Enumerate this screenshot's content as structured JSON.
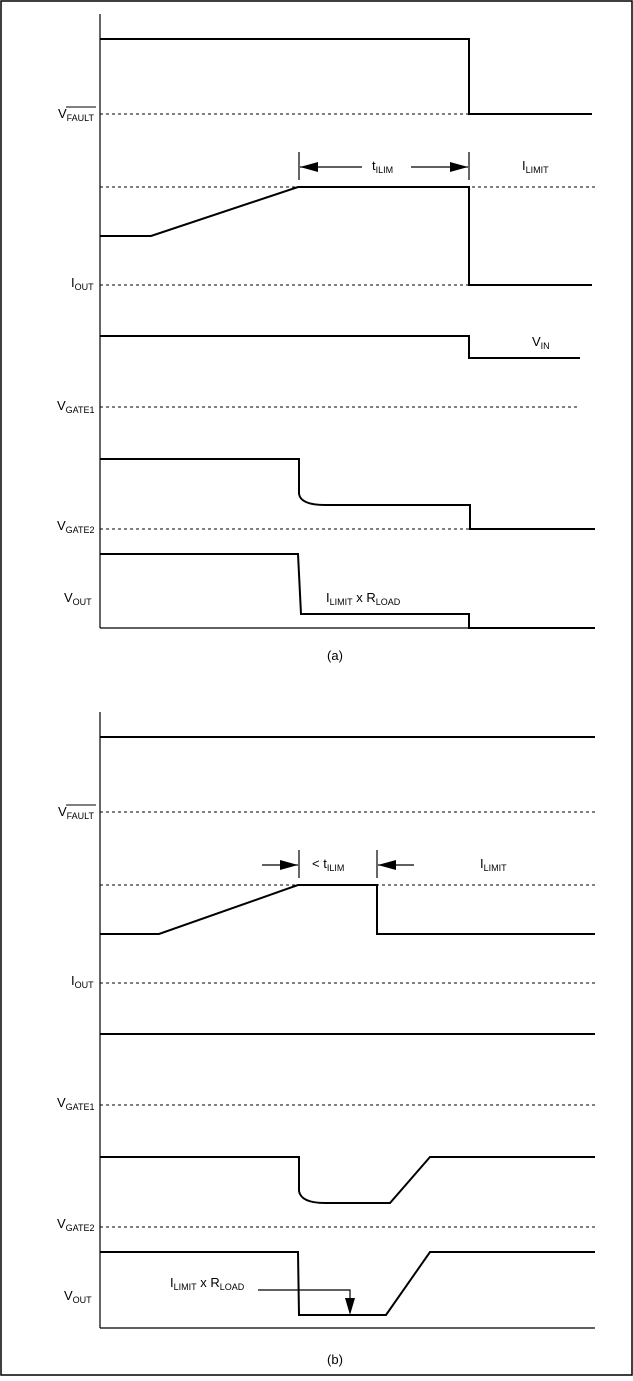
{
  "panel_a": {
    "caption": "(a)",
    "labels": {
      "vfault": "V",
      "vfault_sub": "FAULT",
      "iout": "I",
      "iout_sub": "OUT",
      "vgate1": "V",
      "vgate1_sub": "GATE1",
      "vgate2": "V",
      "vgate2_sub": "GATE2",
      "vout": "V",
      "vout_sub": "OUT"
    },
    "annotations": {
      "t_ilim": "t",
      "t_ilim_sub": "ILIM",
      "ilimit": "I",
      "ilimit_sub": "LIMIT",
      "vin": "V",
      "vin_sub": "IN",
      "ilimit_rload_i": "I",
      "ilimit_rload_i_sub": "LIMIT",
      "ilimit_rload_x": " x R",
      "ilimit_rload_r_sub": "LOAD"
    }
  },
  "panel_b": {
    "caption": "(b)",
    "labels": {
      "vfault": "V",
      "vfault_sub": "FAULT",
      "iout": "I",
      "iout_sub": "OUT",
      "vgate1": "V",
      "vgate1_sub": "GATE1",
      "vgate2": "V",
      "vgate2_sub": "GATE2",
      "vout": "V",
      "vout_sub": "OUT"
    },
    "annotations": {
      "lt_t_ilim": "< t",
      "lt_t_ilim_sub": "ILIM",
      "ilimit": "I",
      "ilimit_sub": "LIMIT",
      "ilimit_rload_i": "I",
      "ilimit_rload_i_sub": "LIMIT",
      "ilimit_rload_x": " x R",
      "ilimit_rload_r_sub": "LOAD"
    }
  }
}
